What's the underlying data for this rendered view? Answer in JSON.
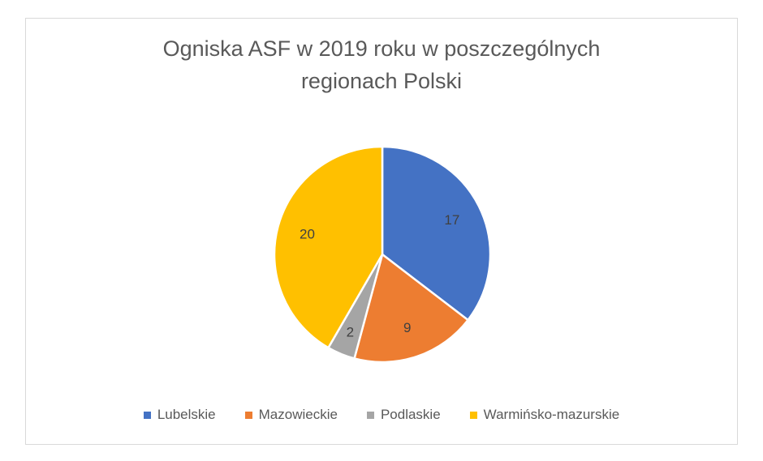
{
  "chart_data": {
    "type": "pie",
    "title": "Ogniska ASF w 2019 roku w poszczególnych regionach Polski",
    "title_lines": [
      "Ogniska ASF w 2019 roku w poszczególnych",
      "regionach Polski"
    ],
    "categories": [
      "Lubelskie",
      "Mazowieckie",
      "Podlaskie",
      "Warmińsko-mazurskie"
    ],
    "values": [
      17,
      9,
      2,
      20
    ],
    "colors": [
      "#4472c4",
      "#ed7d31",
      "#a5a5a5",
      "#ffc000"
    ],
    "data_labels": [
      "17",
      "9",
      "2",
      "20"
    ],
    "legend_position": "bottom",
    "start_angle_deg": 0,
    "direction": "clockwise"
  }
}
